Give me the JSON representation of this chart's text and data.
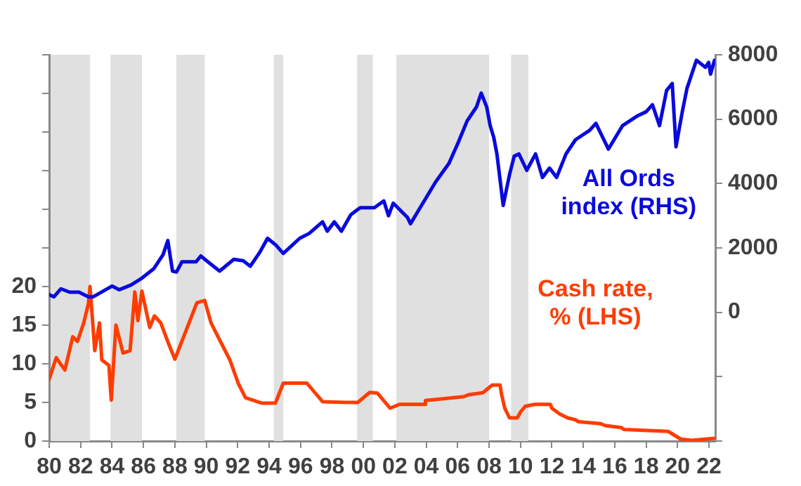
{
  "chart_data": {
    "type": "line",
    "legend": false,
    "grid": false,
    "marker": "none",
    "line_style": "solid",
    "xlim": [
      1980,
      2022.4
    ],
    "xticks": [
      {
        "value": 1980,
        "label": "80"
      },
      {
        "value": 1982,
        "label": "82"
      },
      {
        "value": 1984,
        "label": "84"
      },
      {
        "value": 1986,
        "label": "86"
      },
      {
        "value": 1988,
        "label": "88"
      },
      {
        "value": 1990,
        "label": "90"
      },
      {
        "value": 1992,
        "label": "92"
      },
      {
        "value": 1994,
        "label": "94"
      },
      {
        "value": 1996,
        "label": "96"
      },
      {
        "value": 1998,
        "label": "98"
      },
      {
        "value": 2000,
        "label": "00"
      },
      {
        "value": 2002,
        "label": "02"
      },
      {
        "value": 2004,
        "label": "04"
      },
      {
        "value": 2006,
        "label": "06"
      },
      {
        "value": 2008,
        "label": "08"
      },
      {
        "value": 2010,
        "label": "10"
      },
      {
        "value": 2012,
        "label": "12"
      },
      {
        "value": 2014,
        "label": "14"
      },
      {
        "value": 2016,
        "label": "16"
      },
      {
        "value": 2018,
        "label": "18"
      },
      {
        "value": 2020,
        "label": "20"
      },
      {
        "value": 2022,
        "label": "22"
      }
    ],
    "ylim": [
      0,
      50
    ],
    "yticks": [
      0,
      5,
      10,
      15,
      20,
      {
        "value": 25,
        "label": null
      },
      {
        "value": 30,
        "label": null
      },
      {
        "value": 35,
        "label": null
      },
      {
        "value": 40,
        "label": null
      },
      {
        "value": 45,
        "label": null
      },
      {
        "value": 50,
        "label": null
      }
    ],
    "y2lim": [
      -4000,
      8000
    ],
    "y2ticks": [
      {
        "value": -4000,
        "label": null
      },
      {
        "value": -2000,
        "label": null
      },
      0,
      2000,
      4000,
      6000,
      8000
    ],
    "bands": [
      {
        "axis": "x",
        "from": 1980.1,
        "to": 1982.6,
        "color": "#e0e0e0"
      },
      {
        "axis": "x",
        "from": 1983.9,
        "to": 1985.9,
        "color": "#e0e0e0"
      },
      {
        "axis": "x",
        "from": 1988.1,
        "to": 1989.9,
        "color": "#e0e0e0"
      },
      {
        "axis": "x",
        "from": 1994.3,
        "to": 1994.9,
        "color": "#e0e0e0"
      },
      {
        "axis": "x",
        "from": 1999.6,
        "to": 2000.6,
        "color": "#e0e0e0"
      },
      {
        "axis": "x",
        "from": 2002.1,
        "to": 2008.0,
        "color": "#e0e0e0"
      },
      {
        "axis": "x",
        "from": 2009.4,
        "to": 2010.5,
        "color": "#e0e0e0"
      }
    ],
    "series": [
      {
        "name": "All Ords index (RHS)",
        "color": "#0a0adc",
        "axis": "y2",
        "x": [
          1980.0,
          1980.3,
          1980.75,
          1981.3,
          1981.9,
          1982.5,
          1982.8,
          1984.0,
          1984.45,
          1985.2,
          1985.9,
          1986.65,
          1987.25,
          1987.55,
          1987.85,
          1988.1,
          1988.45,
          1989.35,
          1989.65,
          1990.1,
          1990.85,
          1991.75,
          1992.35,
          1992.8,
          1993.4,
          1993.9,
          1994.45,
          1994.9,
          1995.95,
          1996.55,
          1997.4,
          1997.7,
          1998.15,
          1998.6,
          1999.2,
          1999.8,
          2000.7,
          2001.3,
          2001.6,
          2001.9,
          2002.8,
          2003.0,
          2003.7,
          2004.6,
          2005.45,
          2006.05,
          2006.6,
          2007.2,
          2007.5,
          2007.85,
          2008.07,
          2008.3,
          2008.5,
          2008.9,
          2009.3,
          2009.6,
          2009.9,
          2010.4,
          2010.96,
          2011.4,
          2011.85,
          2012.3,
          2012.9,
          2013.5,
          2014.4,
          2014.8,
          2015.6,
          2016.5,
          2017.4,
          2018.0,
          2018.4,
          2018.85,
          2019.3,
          2019.66,
          2019.9,
          2020.3,
          2020.6,
          2021.2,
          2021.77,
          2021.98,
          2022.1,
          2022.35
        ],
        "values": [
          550,
          480,
          730,
          625,
          625,
          480,
          480,
          815,
          700,
          845,
          1060,
          1350,
          1790,
          2230,
          1280,
          1250,
          1570,
          1570,
          1750,
          1570,
          1280,
          1645,
          1600,
          1430,
          1860,
          2300,
          2080,
          1830,
          2300,
          2450,
          2810,
          2520,
          2810,
          2520,
          3030,
          3250,
          3250,
          3460,
          3000,
          3390,
          2950,
          2750,
          3320,
          4050,
          4630,
          5290,
          5940,
          6380,
          6810,
          6380,
          5800,
          5430,
          4920,
          3320,
          4270,
          4850,
          4920,
          4410,
          4920,
          4190,
          4480,
          4190,
          4920,
          5360,
          5650,
          5870,
          5070,
          5800,
          6090,
          6230,
          6450,
          5800,
          6890,
          7110,
          5140,
          6230,
          6960,
          7830,
          7610,
          7760,
          7400,
          7830
        ]
      },
      {
        "name": "Cash rate, % (LHS)",
        "color": "#ff3c00",
        "x": [
          1980.0,
          1980.45,
          1980.75,
          1981.0,
          1981.5,
          1981.8,
          1982.2,
          1982.5,
          1982.6,
          1982.9,
          1983.2,
          1983.35,
          1983.8,
          1983.95,
          1984.25,
          1984.7,
          1985.15,
          1985.45,
          1985.65,
          1985.9,
          1986.4,
          1986.7,
          1987.1,
          1987.6,
          1988.0,
          1988.5,
          1989.4,
          1989.9,
          1990.3,
          1990.9,
          1991.5,
          1992.05,
          1992.5,
          1993.55,
          1994.4,
          1994.9,
          1996.4,
          1997.4,
          1998.9,
          1999.65,
          2000.4,
          2000.9,
          2001.7,
          2002.3,
          2002.5,
          2003.9,
          2003.95,
          2005.2,
          2006.4,
          2006.7,
          2007.6,
          2007.9,
          2008.2,
          2008.7,
          2008.8,
          2009.0,
          2009.3,
          2009.8,
          2010.0,
          2010.3,
          2010.9,
          2011.9,
          2012.0,
          2012.5,
          2013.0,
          2013.5,
          2013.7,
          2015.1,
          2015.4,
          2016.4,
          2016.6,
          2019.4,
          2019.6,
          2019.8,
          2020.2,
          2020.9,
          2022.3
        ],
        "values": [
          8.0,
          10.8,
          9.9,
          9.2,
          13.5,
          12.9,
          15.3,
          17.8,
          20,
          11.7,
          15.3,
          10.5,
          9.8,
          5.3,
          15.0,
          11.4,
          11.7,
          19.3,
          15.6,
          19.4,
          14.7,
          16.2,
          15.3,
          12.6,
          10.6,
          13.2,
          17.9,
          18.2,
          15.3,
          12.9,
          10.5,
          7.4,
          5.6,
          4.9,
          4.9,
          7.5,
          7.5,
          5.1,
          5.0,
          5.0,
          6.3,
          6.2,
          4.25,
          4.75,
          4.75,
          4.75,
          5.25,
          5.5,
          5.75,
          6.0,
          6.25,
          6.75,
          7.25,
          7.25,
          6.0,
          4.25,
          3.0,
          3.0,
          3.75,
          4.5,
          4.75,
          4.75,
          4.25,
          3.5,
          3.0,
          2.75,
          2.5,
          2.25,
          2.0,
          1.75,
          1.5,
          1.25,
          1.0,
          0.75,
          0.25,
          0.1,
          0.35
        ]
      }
    ]
  }
}
